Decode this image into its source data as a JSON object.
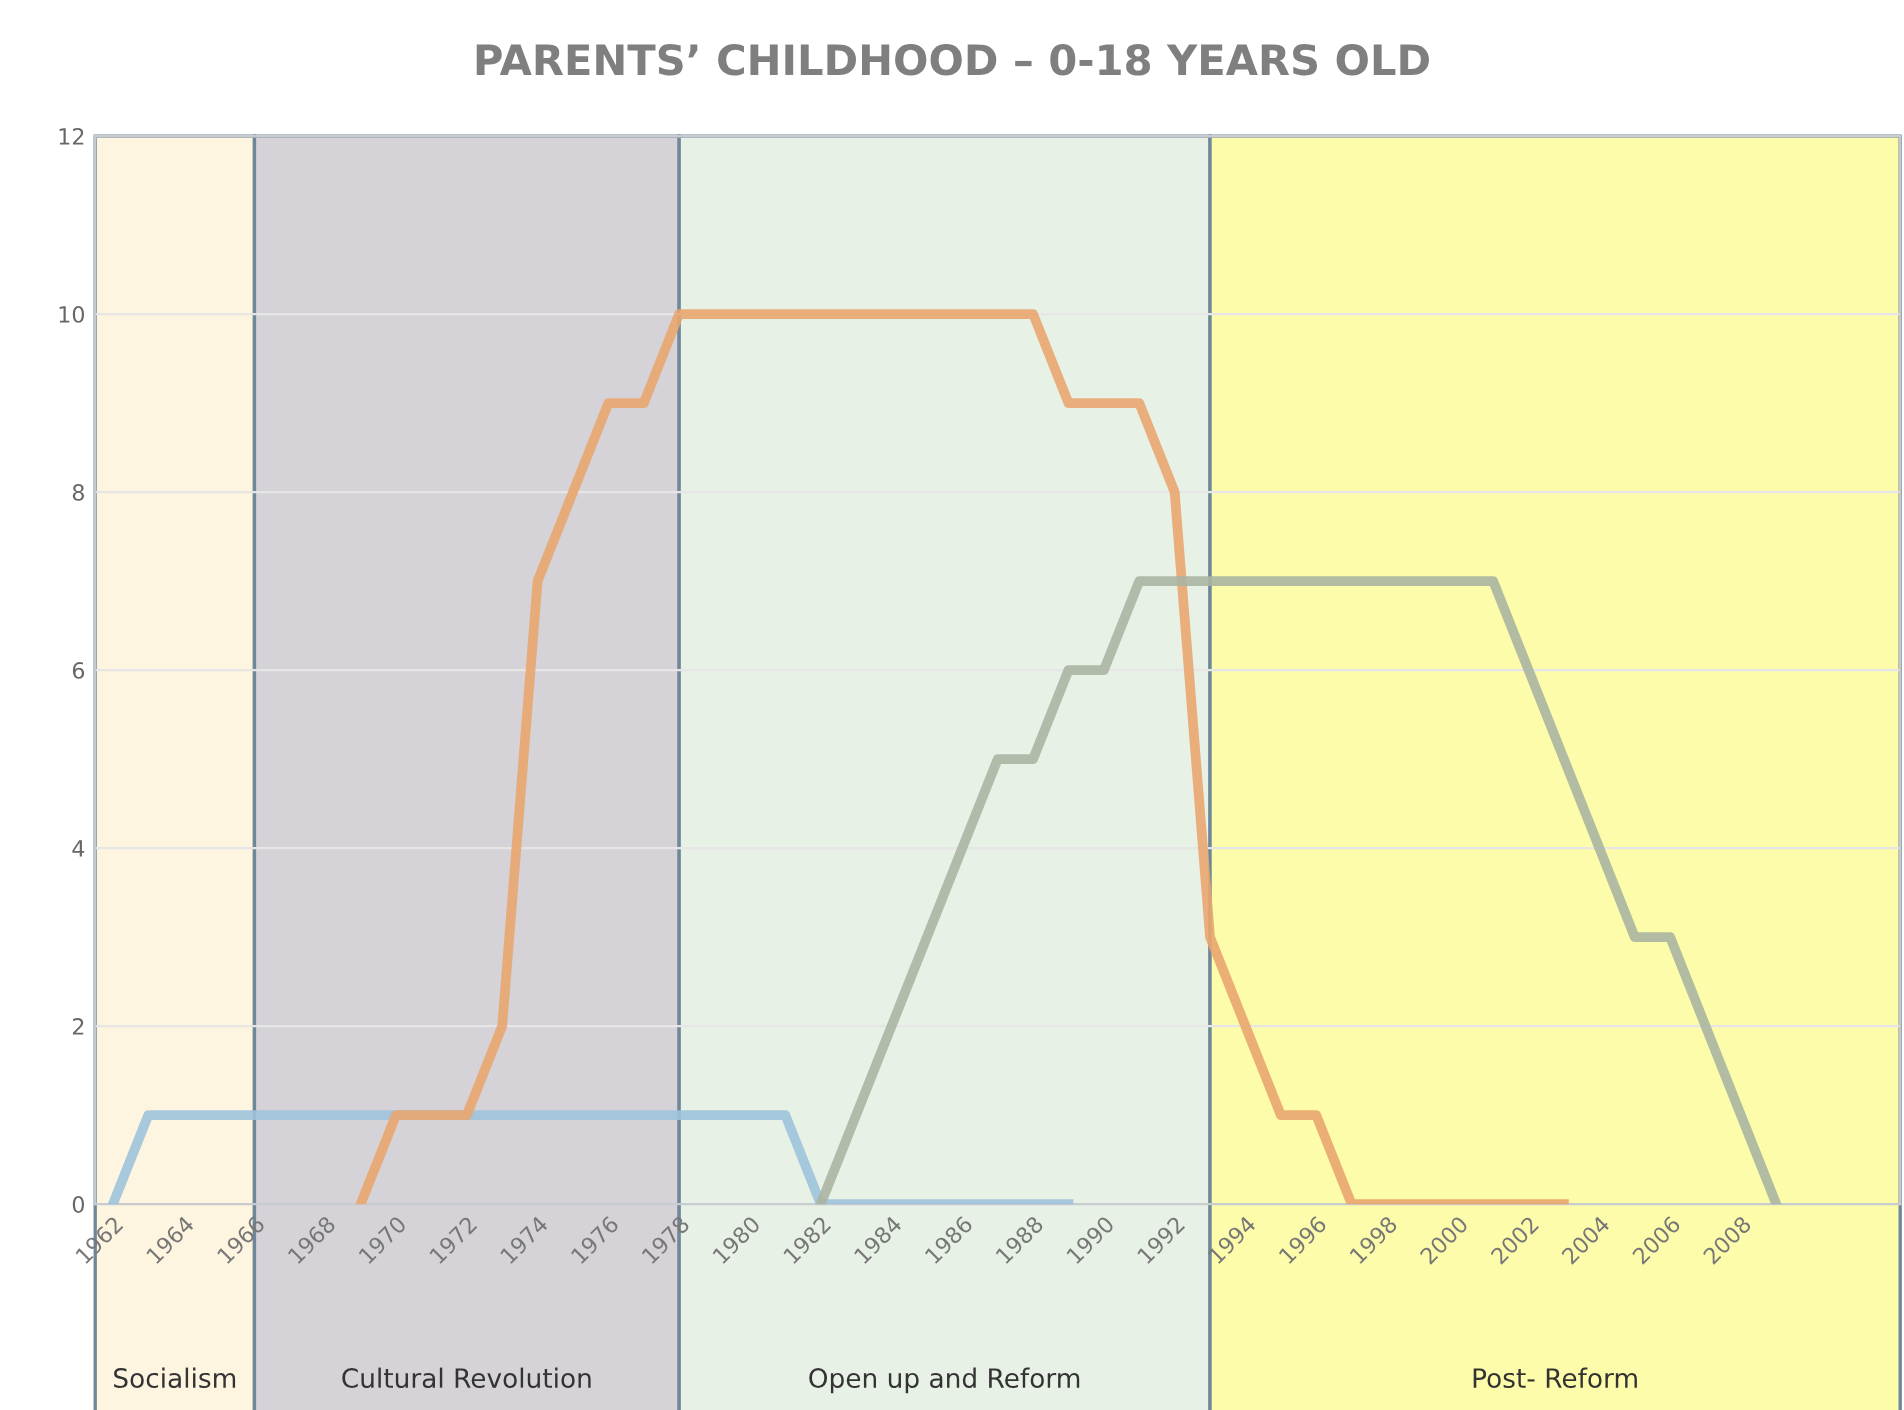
{
  "chart_data": {
    "type": "line",
    "title": "PARENTS’ CHILDHOOD – 0-18 YEARS OLD",
    "xlim": [
      1961.5,
      2012.5
    ],
    "xticks": [
      1962,
      1964,
      1966,
      1968,
      1970,
      1972,
      1974,
      1976,
      1978,
      1980,
      1982,
      1984,
      1986,
      1988,
      1990,
      1992,
      1994,
      1996,
      1998,
      2000,
      2002,
      2004,
      2006,
      2008
    ],
    "ylim": [
      0,
      12
    ],
    "yticks": [
      0,
      2,
      4,
      6,
      8,
      10,
      12
    ],
    "grid": "y",
    "legend": false,
    "marker": "none",
    "line_style": "solid",
    "series": [
      {
        "color": "#9ec3dc",
        "x": [
          1962,
          1963,
          1981,
          1982,
          1989
        ],
        "values": [
          0,
          1,
          1,
          0,
          0
        ]
      },
      {
        "color": "#e9a66f",
        "x": [
          1969,
          1970,
          1972,
          1973,
          1974,
          1976,
          1977,
          1978,
          1988,
          1989,
          1991,
          1992,
          1993,
          1994,
          1995,
          1996,
          1997,
          2003
        ],
        "values": [
          0,
          1,
          1,
          2,
          7,
          9,
          9,
          10,
          10,
          9,
          9,
          8,
          3,
          2,
          1,
          1,
          0,
          0
        ]
      },
      {
        "color": "#aab5a2",
        "x": [
          1982,
          1987,
          1988,
          1989,
          1990,
          1991,
          2001,
          2005,
          2006,
          2009
        ],
        "values": [
          0,
          5,
          5,
          6,
          6,
          7,
          7,
          3,
          3,
          0
        ]
      }
    ],
    "bands": [
      {
        "axis": "x",
        "from": 1961.5,
        "to": 1966,
        "label": "Socialism",
        "color": "#fdf5e0"
      },
      {
        "axis": "x",
        "from": 1966,
        "to": 1978,
        "label": "Cultural Revolution",
        "color": "#d5d2d8"
      },
      {
        "axis": "x",
        "from": 1978,
        "to": 1993,
        "label": "Open up and Reform",
        "color": "#e8f1e6"
      },
      {
        "axis": "x",
        "from": 1993,
        "to": 2012.5,
        "label": "Post- Reform",
        "color": "#fdfcaa"
      }
    ]
  }
}
